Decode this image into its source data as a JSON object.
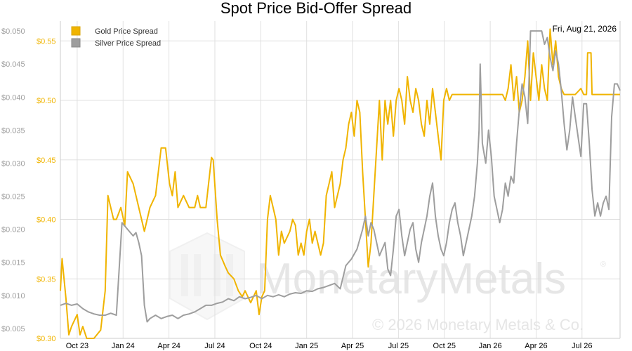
{
  "chart_data": {
    "type": "line",
    "title": "Spot Price Bid-Offer Spread",
    "date_label": "Fri, Aug 21, 2026",
    "x_tick_labels": [
      "Oct 23",
      "Jan 24",
      "Apr 24",
      "Jul 24",
      "Oct 24",
      "Jan 25",
      "Apr 25",
      "Jul 25",
      "Oct 25",
      "Jan 26",
      "Apr 26",
      "Jul 26"
    ],
    "left_axis": {
      "ticks": [
        "$0.005",
        "$0.010",
        "$0.015",
        "$0.020",
        "$0.025",
        "$0.030",
        "$0.035",
        "$0.040",
        "$0.045",
        "$0.050"
      ],
      "range": [
        0.0035,
        0.0515
      ],
      "series": "Silver Price Spread"
    },
    "right_axis": {
      "ticks": [
        "$0.30",
        "$0.35",
        "$0.40",
        "$0.45",
        "$0.50",
        "$0.55"
      ],
      "range": [
        0.3,
        0.5667
      ],
      "series": "Gold Price Spread"
    },
    "grid": true,
    "legend_position": "top-left",
    "series": [
      {
        "name": "Gold Price Spread",
        "axis": "right",
        "color": "#f0b400",
        "points": [
          [
            0,
            0.34
          ],
          [
            0.3,
            0.367
          ],
          [
            1,
            0.333
          ],
          [
            1.5,
            0.303
          ],
          [
            2,
            0.31
          ],
          [
            3,
            0.32
          ],
          [
            3.5,
            0.303
          ],
          [
            4,
            0.31
          ],
          [
            4.7,
            0.3
          ],
          [
            6,
            0.3
          ],
          [
            7.2,
            0.307
          ],
          [
            8,
            0.34
          ],
          [
            8.5,
            0.42
          ],
          [
            9.5,
            0.4
          ],
          [
            10,
            0.4
          ],
          [
            10.8,
            0.41
          ],
          [
            11.5,
            0.395
          ],
          [
            12,
            0.44
          ],
          [
            13,
            0.43
          ],
          [
            14,
            0.41
          ],
          [
            15,
            0.39
          ],
          [
            16,
            0.41
          ],
          [
            17,
            0.42
          ],
          [
            18,
            0.46
          ],
          [
            18.8,
            0.46
          ],
          [
            19.5,
            0.43
          ],
          [
            20,
            0.42
          ],
          [
            20.5,
            0.44
          ],
          [
            21,
            0.41
          ],
          [
            22,
            0.42
          ],
          [
            23,
            0.41
          ],
          [
            24,
            0.41
          ],
          [
            24.5,
            0.42
          ],
          [
            25,
            0.41
          ],
          [
            26,
            0.41
          ],
          [
            27,
            0.452
          ],
          [
            27.3,
            0.45
          ],
          [
            28,
            0.4
          ],
          [
            28.6,
            0.37
          ],
          [
            29.5,
            0.36
          ],
          [
            30,
            0.355
          ],
          [
            31,
            0.35
          ],
          [
            31.8,
            0.34
          ],
          [
            32.5,
            0.335
          ],
          [
            33,
            0.34
          ],
          [
            34,
            0.33
          ],
          [
            35,
            0.34
          ],
          [
            35.5,
            0.32
          ],
          [
            36,
            0.335
          ],
          [
            36.5,
            0.34
          ],
          [
            37,
            0.4
          ],
          [
            37.5,
            0.42
          ],
          [
            38,
            0.41
          ],
          [
            38.5,
            0.4
          ],
          [
            39,
            0.37
          ],
          [
            39.5,
            0.39
          ],
          [
            40,
            0.38
          ],
          [
            41,
            0.39
          ],
          [
            41.5,
            0.4
          ],
          [
            42,
            0.395
          ],
          [
            42.5,
            0.37
          ],
          [
            43,
            0.38
          ],
          [
            43.5,
            0.37
          ],
          [
            44,
            0.39
          ],
          [
            44.5,
            0.4
          ],
          [
            45,
            0.38
          ],
          [
            45.5,
            0.39
          ],
          [
            46,
            0.38
          ],
          [
            46.5,
            0.37
          ],
          [
            47,
            0.38
          ],
          [
            47.5,
            0.42
          ],
          [
            48,
            0.43
          ],
          [
            48.5,
            0.44
          ],
          [
            49,
            0.41
          ],
          [
            49.5,
            0.42
          ],
          [
            50,
            0.43
          ],
          [
            50.5,
            0.45
          ],
          [
            51,
            0.46
          ],
          [
            51.5,
            0.48
          ],
          [
            52,
            0.49
          ],
          [
            52.5,
            0.47
          ],
          [
            53,
            0.5
          ],
          [
            53.5,
            0.49
          ],
          [
            54,
            0.44
          ],
          [
            54.5,
            0.4
          ],
          [
            55,
            0.36
          ],
          [
            55.5,
            0.38
          ],
          [
            56,
            0.42
          ],
          [
            56.5,
            0.46
          ],
          [
            57,
            0.5
          ],
          [
            57.5,
            0.45
          ],
          [
            58,
            0.5
          ],
          [
            58.5,
            0.48
          ],
          [
            59,
            0.5
          ],
          [
            59.5,
            0.47
          ],
          [
            60,
            0.5
          ],
          [
            60.5,
            0.51
          ],
          [
            61,
            0.5
          ],
          [
            61.5,
            0.48
          ],
          [
            62,
            0.52
          ],
          [
            62.5,
            0.5
          ],
          [
            63,
            0.49
          ],
          [
            63.5,
            0.51
          ],
          [
            64,
            0.5
          ],
          [
            64.5,
            0.48
          ],
          [
            65,
            0.47
          ],
          [
            65.5,
            0.5
          ],
          [
            66,
            0.48
          ],
          [
            66.5,
            0.51
          ],
          [
            67,
            0.49
          ],
          [
            67.5,
            0.47
          ],
          [
            68,
            0.45
          ],
          [
            68.5,
            0.5
          ],
          [
            69,
            0.51
          ],
          [
            69.5,
            0.5
          ],
          [
            70,
            0.505
          ],
          [
            72,
            0.505
          ],
          [
            74,
            0.505
          ],
          [
            76,
            0.505
          ],
          [
            78,
            0.505
          ],
          [
            79,
            0.505
          ],
          [
            79.5,
            0.5
          ],
          [
            80,
            0.51
          ],
          [
            80.5,
            0.53
          ],
          [
            81,
            0.5
          ],
          [
            81.5,
            0.52
          ],
          [
            82,
            0.49
          ],
          [
            82.5,
            0.5
          ],
          [
            83,
            0.52
          ],
          [
            83.5,
            0.55
          ],
          [
            84,
            0.5
          ],
          [
            84.5,
            0.54
          ],
          [
            85,
            0.52
          ],
          [
            85.5,
            0.5
          ],
          [
            86,
            0.53
          ],
          [
            86.5,
            0.51
          ],
          [
            87,
            0.5
          ],
          [
            87.5,
            0.56
          ],
          [
            88,
            0.53
          ],
          [
            88.5,
            0.55
          ],
          [
            89,
            0.52
          ],
          [
            89.5,
            0.51
          ],
          [
            90,
            0.505
          ],
          [
            92,
            0.505
          ],
          [
            93,
            0.51
          ],
          [
            93.5,
            0.505
          ],
          [
            94,
            0.505
          ],
          [
            94.2,
            0.54
          ],
          [
            94.8,
            0.54
          ],
          [
            95,
            0.505
          ],
          [
            97,
            0.505
          ],
          [
            99,
            0.505
          ],
          [
            100,
            0.505
          ]
        ]
      },
      {
        "name": "Silver Price Spread",
        "axis": "left",
        "color": "#9e9e9e",
        "points": [
          [
            0,
            0.0085
          ],
          [
            1,
            0.0088
          ],
          [
            2,
            0.0085
          ],
          [
            3,
            0.0087
          ],
          [
            4,
            0.008
          ],
          [
            5,
            0.0075
          ],
          [
            6,
            0.0072
          ],
          [
            7,
            0.007
          ],
          [
            8,
            0.007
          ],
          [
            9,
            0.0073
          ],
          [
            10,
            0.007
          ],
          [
            11,
            0.021
          ],
          [
            12,
            0.02
          ],
          [
            13,
            0.019
          ],
          [
            13.5,
            0.0195
          ],
          [
            14,
            0.018
          ],
          [
            14.5,
            0.016
          ],
          [
            15,
            0.0085
          ],
          [
            15.5,
            0.006
          ],
          [
            16,
            0.0065
          ],
          [
            17,
            0.007
          ],
          [
            18,
            0.0065
          ],
          [
            19,
            0.0068
          ],
          [
            20,
            0.007
          ],
          [
            21,
            0.0065
          ],
          [
            22,
            0.007
          ],
          [
            23,
            0.0072
          ],
          [
            24,
            0.0075
          ],
          [
            25,
            0.008
          ],
          [
            26,
            0.0085
          ],
          [
            27,
            0.0085
          ],
          [
            28,
            0.0088
          ],
          [
            29,
            0.009
          ],
          [
            30,
            0.0095
          ],
          [
            31,
            0.0092
          ],
          [
            32,
            0.0098
          ],
          [
            33,
            0.0095
          ],
          [
            34,
            0.0097
          ],
          [
            35,
            0.01
          ],
          [
            36,
            0.0095
          ],
          [
            37,
            0.01
          ],
          [
            38,
            0.0098
          ],
          [
            39,
            0.0101
          ],
          [
            40,
            0.0098
          ],
          [
            41,
            0.0102
          ],
          [
            42,
            0.0104
          ],
          [
            43,
            0.0103
          ],
          [
            44,
            0.0107
          ],
          [
            45,
            0.0106
          ],
          [
            46,
            0.011
          ],
          [
            47,
            0.0112
          ],
          [
            48,
            0.0115
          ],
          [
            49,
            0.0118
          ],
          [
            50,
            0.011
          ],
          [
            51,
            0.0145
          ],
          [
            52,
            0.0155
          ],
          [
            53,
            0.017
          ],
          [
            54,
            0.02
          ],
          [
            54.5,
            0.022
          ],
          [
            55,
            0.019
          ],
          [
            55.5,
            0.021
          ],
          [
            56,
            0.02
          ],
          [
            56.5,
            0.018
          ],
          [
            57,
            0.016
          ],
          [
            57.5,
            0.017
          ],
          [
            58,
            0.018
          ],
          [
            58.5,
            0.014
          ],
          [
            59,
            0.013
          ],
          [
            59.5,
            0.017
          ],
          [
            60,
            0.022
          ],
          [
            60.5,
            0.023
          ],
          [
            61,
            0.019
          ],
          [
            61.5,
            0.016
          ],
          [
            62,
            0.018
          ],
          [
            62.5,
            0.02
          ],
          [
            63,
            0.021
          ],
          [
            63.5,
            0.017
          ],
          [
            64,
            0.015
          ],
          [
            64.5,
            0.018
          ],
          [
            65,
            0.02
          ],
          [
            65.5,
            0.022
          ],
          [
            66,
            0.025
          ],
          [
            66.5,
            0.027
          ],
          [
            67,
            0.022
          ],
          [
            67.5,
            0.019
          ],
          [
            68,
            0.017
          ],
          [
            68.5,
            0.016
          ],
          [
            69,
            0.018
          ],
          [
            69.5,
            0.021
          ],
          [
            70,
            0.023
          ],
          [
            70.5,
            0.024
          ],
          [
            71,
            0.021
          ],
          [
            71.5,
            0.019
          ],
          [
            72,
            0.016
          ],
          [
            72.5,
            0.018
          ],
          [
            73,
            0.02
          ],
          [
            73.5,
            0.022
          ],
          [
            74,
            0.025
          ],
          [
            74.5,
            0.03
          ],
          [
            74.8,
            0.035
          ],
          [
            75,
            0.045
          ],
          [
            75.4,
            0.033
          ],
          [
            76,
            0.03
          ],
          [
            76.5,
            0.035
          ],
          [
            77,
            0.031
          ],
          [
            77.5,
            0.025
          ],
          [
            78,
            0.023
          ],
          [
            78.5,
            0.021
          ],
          [
            79,
            0.023
          ],
          [
            79.5,
            0.027
          ],
          [
            80,
            0.025
          ],
          [
            80.5,
            0.028
          ],
          [
            81,
            0.027
          ],
          [
            81.5,
            0.033
          ],
          [
            82,
            0.038
          ],
          [
            82.5,
            0.042
          ],
          [
            83,
            0.04
          ],
          [
            83.5,
            0.036
          ],
          [
            84,
            0.05
          ],
          [
            85,
            0.05
          ],
          [
            86,
            0.05
          ],
          [
            86.5,
            0.048
          ],
          [
            87,
            0.049
          ],
          [
            87.5,
            0.046
          ],
          [
            88,
            0.044
          ],
          [
            88.5,
            0.047
          ],
          [
            89,
            0.045
          ],
          [
            89.5,
            0.041
          ],
          [
            90,
            0.036
          ],
          [
            90.5,
            0.032
          ],
          [
            91,
            0.035
          ],
          [
            91.5,
            0.04
          ],
          [
            92,
            0.037
          ],
          [
            92.5,
            0.034
          ],
          [
            93,
            0.031
          ],
          [
            93.5,
            0.039
          ],
          [
            94,
            0.039
          ],
          [
            94.5,
            0.033
          ],
          [
            95,
            0.026
          ],
          [
            95.5,
            0.022
          ],
          [
            96,
            0.024
          ],
          [
            96.5,
            0.022
          ],
          [
            97,
            0.024
          ],
          [
            97.5,
            0.025
          ],
          [
            98,
            0.023
          ],
          [
            98.5,
            0.037
          ],
          [
            99,
            0.042
          ],
          [
            99.5,
            0.042
          ],
          [
            100,
            0.041
          ]
        ]
      }
    ]
  },
  "legend": {
    "gold_label": "Gold Price Spread",
    "silver_label": "Silver Price Spread"
  },
  "watermark": {
    "brand": "MonetaryMetals",
    "copyright": "© 2026 Monetary Metals & Co.",
    "mark": "®"
  },
  "colors": {
    "gold": "#f0b400",
    "silver": "#9e9e9e",
    "grid": "#e0e0e0",
    "left_tick": "#9e9e9e",
    "right_tick": "#f0b400"
  }
}
